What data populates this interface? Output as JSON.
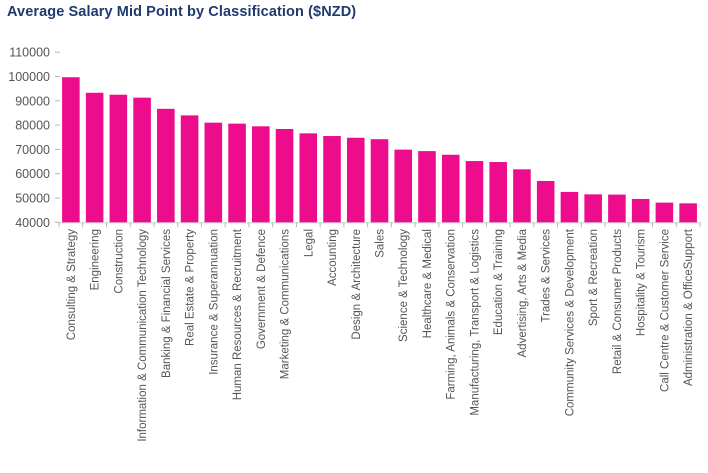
{
  "chart_data": {
    "type": "bar",
    "title": "Average Salary Mid Point by Classification ($NZD)",
    "xlabel": "",
    "ylabel": "",
    "ylim": [
      40000,
      110000
    ],
    "yticks": [
      40000,
      50000,
      60000,
      70000,
      80000,
      90000,
      100000,
      110000
    ],
    "ytick_labels": [
      "40000",
      "50000",
      "60000",
      "70000",
      "80000",
      "90000",
      "100000",
      "110000"
    ],
    "grid": false,
    "legend": "none",
    "bar_color": "#ec0c8c",
    "categories": [
      "Consulting & Strategy",
      "Engineering",
      "Construction",
      "Information & Communication Technology",
      "Banking & Financial Services",
      "Real Estate & Property",
      "Insurance & Superannuation",
      "Human Resources & Recruitment",
      "Government & Defence",
      "Marketing & Communications",
      "Legal",
      "Accounting",
      "Design & Architecture",
      "Sales",
      "Science & Technology",
      "Healthcare & Medical",
      "Farming, Animals & Conservation",
      "Manufacturing, Transport & Logistics",
      "Education & Training",
      "Advertising, Arts & Media",
      "Trades & Services",
      "Community Services & Development",
      "Sport & Recreation",
      "Retail & Consumer Products",
      "Hospitality & Tourism",
      "Call Centre & Customer Service",
      "Administration & OfficeSupport"
    ],
    "values": [
      99700,
      93300,
      92500,
      91300,
      86700,
      84000,
      81000,
      80600,
      79500,
      78400,
      76600,
      75500,
      74800,
      74200,
      69900,
      69300,
      67800,
      65200,
      64800,
      61800,
      57000,
      52500,
      51500,
      51400,
      49600,
      48100,
      47800
    ]
  }
}
